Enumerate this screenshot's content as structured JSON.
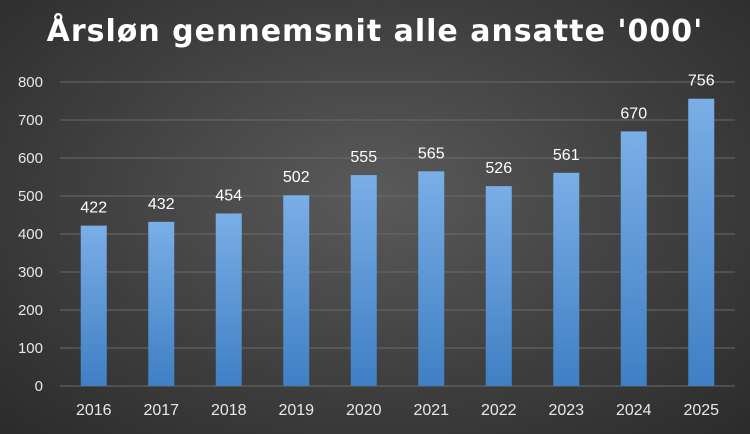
{
  "chart_data": {
    "type": "bar",
    "title": "Årsløn gennemsnit alle ansatte '000'",
    "xlabel": "",
    "ylabel": "",
    "categories": [
      "2016",
      "2017",
      "2018",
      "2019",
      "2020",
      "2021",
      "2022",
      "2023",
      "2024",
      "2025"
    ],
    "values": [
      422,
      432,
      454,
      502,
      555,
      565,
      526,
      561,
      670,
      756
    ],
    "ylim": [
      0,
      800
    ],
    "yticks": [
      0,
      100,
      200,
      300,
      400,
      500,
      600,
      700,
      800
    ],
    "grid": true,
    "legend": "none",
    "data_labels": true,
    "colors": {
      "bar_top": "#7aaee6",
      "bar_bottom": "#3f7fc4",
      "grid": "#6a6a6a",
      "text": "#ffffff",
      "tick_text": "#e8e8e8"
    }
  }
}
